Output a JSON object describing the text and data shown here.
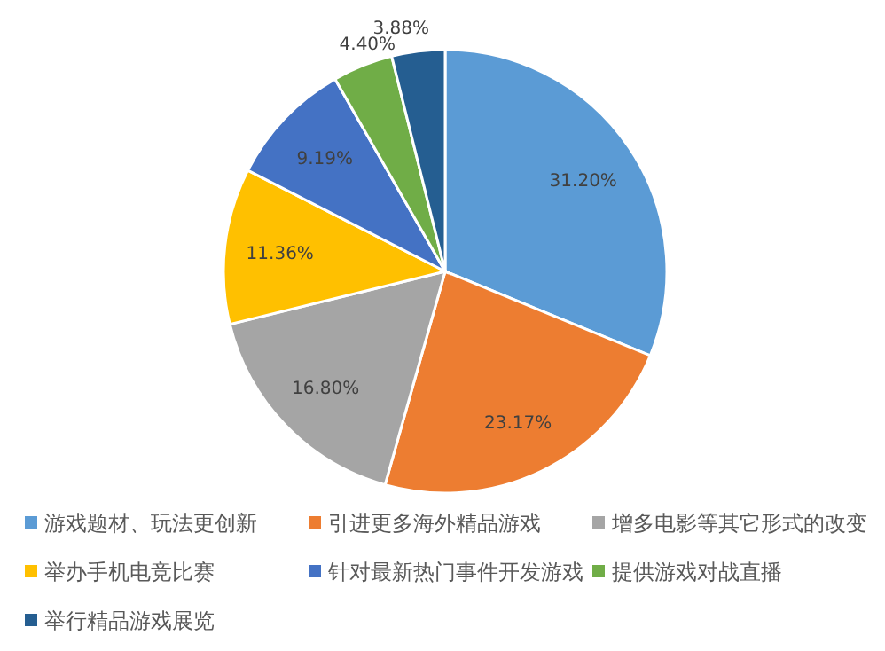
{
  "chart_data": {
    "type": "pie",
    "categories": [
      "游戏题材、玩法更创新",
      "引进更多海外精品游戏",
      "增多电影等其它形式的改变",
      "举办手机电竞比赛",
      "针对最新热门事件开发游戏",
      "提供游戏对战直播",
      "举行精品游戏展览"
    ],
    "values": [
      31.2,
      23.17,
      16.8,
      11.36,
      9.19,
      4.4,
      3.88
    ],
    "value_labels": [
      "31.20%",
      "23.17%",
      "16.80%",
      "11.36%",
      "9.19%",
      "4.40%",
      "3.88%"
    ],
    "colors": [
      "#5b9bd5",
      "#ed7d31",
      "#a5a5a5",
      "#ffc000",
      "#4472c4",
      "#70ad47",
      "#255e91"
    ],
    "legend": "bottom"
  }
}
